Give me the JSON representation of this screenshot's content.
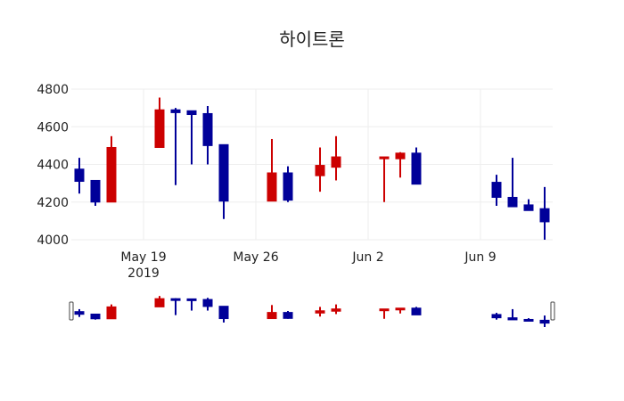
{
  "chart_data": {
    "type": "candlestick",
    "title": "하이트론",
    "xlabel": "",
    "ylabel": "",
    "ylim": [
      4000,
      4800
    ],
    "yticks": [
      4000,
      4200,
      4400,
      4600,
      4800
    ],
    "xrange": [
      "2019-05-14T12:00",
      "2019-06-13T12:00"
    ],
    "xticks": [
      {
        "date": "2019-05-19",
        "label": "May 19",
        "sublabel": "2019"
      },
      {
        "date": "2019-05-26",
        "label": "May 26",
        "sublabel": ""
      },
      {
        "date": "2019-06-02",
        "label": "Jun 2",
        "sublabel": ""
      },
      {
        "date": "2019-06-09",
        "label": "Jun 9",
        "sublabel": ""
      }
    ],
    "grid": true,
    "rangeslider": true,
    "increasing_color": "#cc0000",
    "decreasing_color": "#000099",
    "series": [
      {
        "date": "2019-05-15",
        "open": 4375,
        "high": 4435,
        "low": 4245,
        "close": 4310
      },
      {
        "date": "2019-05-16",
        "open": 4315,
        "high": 4315,
        "low": 4180,
        "close": 4200
      },
      {
        "date": "2019-05-17",
        "open": 4200,
        "high": 4550,
        "low": 4200,
        "close": 4490
      },
      {
        "date": "2019-05-20",
        "open": 4490,
        "high": 4755,
        "low": 4490,
        "close": 4690
      },
      {
        "date": "2019-05-21",
        "open": 4690,
        "high": 4700,
        "low": 4290,
        "close": 4675
      },
      {
        "date": "2019-05-22",
        "open": 4685,
        "high": 4685,
        "low": 4400,
        "close": 4665
      },
      {
        "date": "2019-05-23",
        "open": 4670,
        "high": 4710,
        "low": 4400,
        "close": 4500
      },
      {
        "date": "2019-05-24",
        "open": 4505,
        "high": 4505,
        "low": 4110,
        "close": 4205
      },
      {
        "date": "2019-05-27",
        "open": 4205,
        "high": 4535,
        "low": 4205,
        "close": 4355
      },
      {
        "date": "2019-05-28",
        "open": 4355,
        "high": 4390,
        "low": 4200,
        "close": 4210
      },
      {
        "date": "2019-05-30",
        "open": 4340,
        "high": 4490,
        "low": 4255,
        "close": 4395
      },
      {
        "date": "2019-05-31",
        "open": 4385,
        "high": 4550,
        "low": 4315,
        "close": 4440
      },
      {
        "date": "2019-06-03",
        "open": 4430,
        "high": 4440,
        "low": 4200,
        "close": 4440
      },
      {
        "date": "2019-06-04",
        "open": 4430,
        "high": 4465,
        "low": 4330,
        "close": 4460
      },
      {
        "date": "2019-06-05",
        "open": 4460,
        "high": 4490,
        "low": 4295,
        "close": 4295
      },
      {
        "date": "2019-06-10",
        "open": 4305,
        "high": 4345,
        "low": 4180,
        "close": 4225
      },
      {
        "date": "2019-06-11",
        "open": 4225,
        "high": 4435,
        "low": 4175,
        "close": 4175
      },
      {
        "date": "2019-06-12",
        "open": 4185,
        "high": 4215,
        "low": 4155,
        "close": 4155
      },
      {
        "date": "2019-06-13",
        "open": 4165,
        "high": 4280,
        "low": 4000,
        "close": 4095
      }
    ]
  },
  "colors": {
    "grid": "#eeeeee",
    "text": "#222222",
    "handle_border": "#444444"
  }
}
